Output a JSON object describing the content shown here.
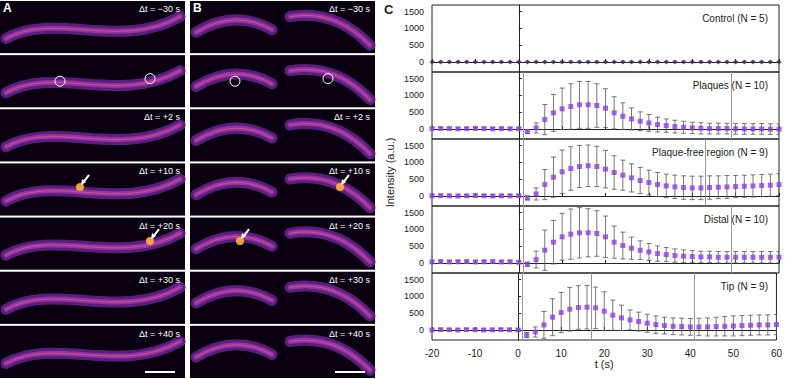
{
  "images": [
    {
      "label": "A",
      "frames": [
        "Δt = −30 s",
        null,
        "Δt = +2 s",
        "Δt = +10 s",
        "Δt = +20 s",
        "Δt = +30 s",
        "Δt = +40 s"
      ]
    },
    {
      "label": "B",
      "frames": [
        "Δt = −30 s",
        null,
        "Δt = +2 s",
        "Δt = +10 s",
        "Δt = +20 s",
        "Δt = +30 s",
        "Δt = +40 s"
      ]
    }
  ],
  "panel_c": {
    "label": "C",
    "x_label": "t (s)",
    "y_label": "Intensity (a.u.)"
  },
  "chart_data": [
    {
      "type": "scatter",
      "title": "Control (N = 5)",
      "color": "#4b1a5e",
      "marker": "diamond",
      "grid": false,
      "x": [
        -20,
        -18,
        -16,
        -14,
        -12,
        -10,
        -8,
        -6,
        -4,
        -2,
        0,
        2,
        4,
        6,
        8,
        10,
        12,
        14,
        16,
        18,
        20,
        22,
        24,
        26,
        28,
        30,
        32,
        34,
        36,
        38,
        40,
        42,
        44,
        46,
        48,
        50,
        52,
        54,
        56,
        58,
        60
      ],
      "values": [
        0,
        0,
        0,
        0,
        0,
        0,
        0,
        0,
        0,
        0,
        0,
        0,
        0,
        0,
        0,
        0,
        0,
        0,
        0,
        0,
        0,
        0,
        0,
        0,
        0,
        0,
        0,
        0,
        0,
        0,
        0,
        0,
        0,
        0,
        0,
        0,
        0,
        0,
        0,
        0,
        0
      ],
      "errors": [
        20,
        20,
        20,
        20,
        20,
        20,
        20,
        20,
        20,
        20,
        20,
        20,
        20,
        20,
        20,
        20,
        20,
        20,
        20,
        20,
        20,
        20,
        20,
        20,
        20,
        20,
        20,
        20,
        20,
        20,
        20,
        20,
        20,
        20,
        20,
        20,
        20,
        20,
        20,
        20,
        20
      ],
      "vlines": [],
      "xlim": [
        -20,
        60
      ],
      "xticks": [
        -20,
        -10,
        0,
        10,
        20,
        30,
        40,
        50,
        60
      ],
      "ylim": [
        -300,
        1700
      ],
      "yticks": [
        0,
        500,
        1000,
        1500
      ]
    },
    {
      "type": "scatter",
      "title": "Plaques (N = 10)",
      "color": "#8a3ee0",
      "marker": "square",
      "grid": false,
      "x": [
        -20,
        -18,
        -16,
        -14,
        -12,
        -10,
        -8,
        -6,
        -4,
        -2,
        0,
        2,
        4,
        6,
        8,
        10,
        12,
        14,
        16,
        18,
        20,
        22,
        24,
        26,
        28,
        30,
        32,
        34,
        36,
        38,
        40,
        42,
        44,
        46,
        48,
        50,
        52,
        54,
        56,
        58,
        60
      ],
      "values": [
        10,
        15,
        10,
        5,
        10,
        15,
        10,
        5,
        10,
        5,
        5,
        -80,
        30,
        280,
        480,
        600,
        670,
        720,
        720,
        700,
        620,
        480,
        380,
        300,
        230,
        180,
        130,
        100,
        70,
        50,
        30,
        20,
        10,
        10,
        10,
        5,
        0,
        0,
        0,
        -5,
        -10
      ],
      "errors": [
        30,
        30,
        30,
        30,
        30,
        30,
        30,
        30,
        30,
        30,
        30,
        60,
        150,
        450,
        550,
        620,
        680,
        700,
        700,
        650,
        580,
        480,
        400,
        330,
        280,
        250,
        220,
        200,
        190,
        180,
        170,
        170,
        160,
        160,
        160,
        160,
        160,
        160,
        160,
        160,
        160
      ],
      "vlines": [
        1,
        49
      ],
      "xlim": [
        -20,
        60
      ],
      "xticks": [
        -20,
        -10,
        0,
        10,
        20,
        30,
        40,
        50,
        60
      ],
      "ylim": [
        -300,
        1700
      ],
      "yticks": [
        0,
        500,
        1000,
        1500
      ]
    },
    {
      "type": "scatter",
      "title": "Plaque-free region (N = 9)",
      "color": "#8a3ee0",
      "marker": "square",
      "grid": false,
      "x": [
        -20,
        -18,
        -16,
        -14,
        -12,
        -10,
        -8,
        -6,
        -4,
        -2,
        0,
        2,
        4,
        6,
        8,
        10,
        12,
        14,
        16,
        18,
        20,
        22,
        24,
        26,
        28,
        30,
        32,
        34,
        36,
        38,
        40,
        42,
        44,
        46,
        48,
        50,
        52,
        54,
        56,
        58,
        60
      ],
      "values": [
        5,
        10,
        5,
        0,
        5,
        10,
        5,
        0,
        5,
        5,
        5,
        -60,
        60,
        340,
        560,
        720,
        820,
        880,
        900,
        880,
        800,
        700,
        620,
        540,
        460,
        400,
        340,
        300,
        270,
        250,
        240,
        240,
        250,
        260,
        270,
        280,
        290,
        300,
        310,
        320,
        340
      ],
      "errors": [
        30,
        30,
        30,
        30,
        30,
        30,
        30,
        30,
        30,
        30,
        30,
        60,
        180,
        450,
        600,
        650,
        650,
        630,
        620,
        600,
        560,
        500,
        450,
        420,
        390,
        370,
        360,
        350,
        350,
        350,
        350,
        350,
        350,
        340,
        340,
        330,
        330,
        330,
        330,
        330,
        330
      ],
      "vlines": [
        1,
        43
      ],
      "xlim": [
        -20,
        60
      ],
      "xticks": [
        -20,
        -10,
        0,
        10,
        20,
        30,
        40,
        50,
        60
      ],
      "ylim": [
        -300,
        1700
      ],
      "yticks": [
        0,
        500,
        1000,
        1500
      ]
    },
    {
      "type": "scatter",
      "title": "Distal (N = 10)",
      "color": "#8a3ee0",
      "marker": "square",
      "grid": false,
      "x": [
        -20,
        -18,
        -16,
        -14,
        -12,
        -10,
        -8,
        -6,
        -4,
        -2,
        0,
        2,
        4,
        6,
        8,
        10,
        12,
        14,
        16,
        18,
        20,
        22,
        24,
        26,
        28,
        30,
        32,
        34,
        36,
        38,
        40,
        42,
        44,
        46,
        48,
        50,
        52,
        54,
        56,
        58,
        60
      ],
      "values": [
        30,
        40,
        30,
        35,
        40,
        30,
        35,
        40,
        30,
        35,
        20,
        -40,
        100,
        380,
        620,
        780,
        860,
        900,
        900,
        880,
        780,
        620,
        520,
        440,
        380,
        330,
        280,
        250,
        220,
        200,
        190,
        180,
        180,
        170,
        170,
        170,
        170,
        170,
        170,
        170,
        170
      ],
      "errors": [
        40,
        40,
        40,
        40,
        40,
        40,
        40,
        40,
        40,
        40,
        40,
        60,
        250,
        600,
        650,
        700,
        750,
        750,
        720,
        680,
        620,
        480,
        400,
        330,
        280,
        250,
        230,
        210,
        200,
        190,
        180,
        170,
        170,
        170,
        170,
        170,
        170,
        170,
        170,
        170,
        170
      ],
      "vlines": [
        1,
        49
      ],
      "xlim": [
        -20,
        60
      ],
      "xticks": [
        -20,
        -10,
        0,
        10,
        20,
        30,
        40,
        50,
        60
      ],
      "ylim": [
        -300,
        1700
      ],
      "yticks": [
        0,
        500,
        1000,
        1500
      ]
    },
    {
      "type": "scatter",
      "title": "Tip (N = 9)",
      "color": "#8a3ee0",
      "marker": "square",
      "grid": false,
      "x": [
        -20,
        -18,
        -16,
        -14,
        -12,
        -10,
        -8,
        -6,
        -4,
        -2,
        0,
        2,
        4,
        6,
        8,
        10,
        12,
        14,
        16,
        18,
        20,
        22,
        24,
        26,
        28,
        30,
        32,
        34,
        36,
        38,
        40,
        42,
        44,
        46,
        48,
        50,
        52,
        54,
        56,
        58,
        60
      ],
      "values": [
        0,
        10,
        5,
        0,
        10,
        5,
        0,
        5,
        10,
        5,
        0,
        -150,
        -60,
        150,
        380,
        520,
        620,
        670,
        680,
        660,
        560,
        440,
        360,
        300,
        250,
        200,
        160,
        130,
        110,
        100,
        90,
        90,
        90,
        100,
        110,
        120,
        130,
        140,
        150,
        150,
        160
      ],
      "errors": [
        30,
        30,
        30,
        30,
        30,
        30,
        30,
        30,
        30,
        30,
        30,
        80,
        150,
        400,
        550,
        600,
        650,
        650,
        650,
        620,
        580,
        450,
        380,
        300,
        280,
        270,
        260,
        250,
        250,
        250,
        250,
        260,
        270,
        280,
        290,
        300,
        300,
        300,
        300,
        300,
        300
      ],
      "vlines": [
        1,
        17,
        41
      ],
      "xlim": [
        -20,
        60
      ],
      "xticks": [
        -20,
        -10,
        0,
        10,
        20,
        30,
        40,
        50,
        60
      ],
      "ylim": [
        -300,
        1700
      ],
      "yticks": [
        0,
        500,
        1000,
        1500
      ]
    }
  ]
}
